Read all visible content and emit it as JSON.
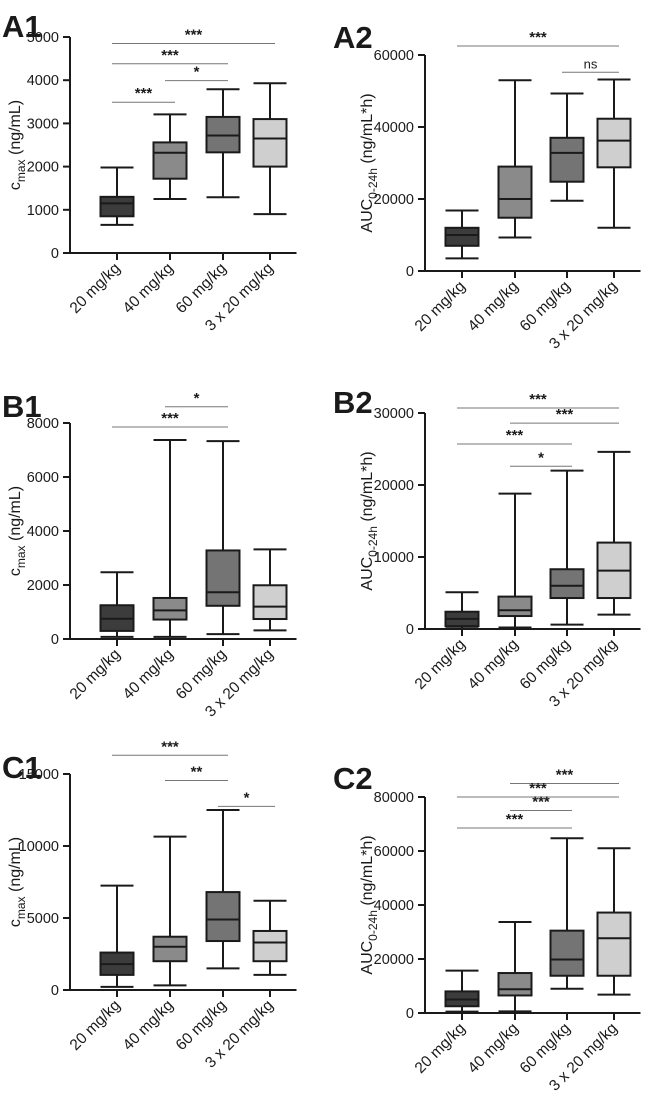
{
  "figure": {
    "colors": {
      "box_fills": [
        "#3c3c3c",
        "#8a8a8a",
        "#747474",
        "#cfcfcf"
      ],
      "line": "#1a1a1a",
      "significance_line": "#777777"
    }
  },
  "chart_data": [
    {
      "type": "box",
      "panel": "A1",
      "title": "",
      "ylabel_main": "c",
      "ylabel_sub": "max",
      "ylabel_unit": " (ng/mL)",
      "categories": [
        "20 mg/kg",
        "40 mg/kg",
        "60 mg/kg",
        "3 x 20 mg/kg"
      ],
      "ylim": [
        0,
        5000
      ],
      "yticks": [
        0,
        1000,
        2000,
        3000,
        4000,
        5000
      ],
      "ytick_labels": [
        "0",
        "1000",
        "2000",
        "3000",
        "4000",
        "5000"
      ],
      "boxes": [
        {
          "min": 650,
          "q1": 850,
          "median": 1150,
          "q3": 1300,
          "max": 1980
        },
        {
          "min": 1250,
          "q1": 1720,
          "median": 2320,
          "q3": 2560,
          "max": 3210
        },
        {
          "min": 1290,
          "q1": 2330,
          "median": 2720,
          "q3": 3150,
          "max": 3790
        },
        {
          "min": 900,
          "q1": 2000,
          "median": 2650,
          "q3": 3100,
          "max": 3930
        }
      ],
      "significance": [
        {
          "from": 0,
          "to": 3,
          "label": "***",
          "y": 4850
        },
        {
          "from": 0,
          "to": 2,
          "label": "***",
          "y": 4380
        },
        {
          "from": 1,
          "to": 2,
          "label": "*",
          "y": 3990
        },
        {
          "from": 0,
          "to": 1,
          "label": "***",
          "y": 3490
        }
      ]
    },
    {
      "type": "box",
      "panel": "A2",
      "title": "",
      "ylabel_main": "AUC",
      "ylabel_sub": "0-24h",
      "ylabel_unit": " (ng/mL*h)",
      "categories": [
        "20 mg/kg",
        "40 mg/kg",
        "60 mg/kg",
        "3 x 20 mg/kg"
      ],
      "ylim": [
        0,
        60000
      ],
      "yticks": [
        0,
        20000,
        40000,
        60000
      ],
      "ytick_labels": [
        "0",
        "20000",
        "40000",
        "60000"
      ],
      "boxes": [
        {
          "min": 3500,
          "q1": 7000,
          "median": 10000,
          "q3": 12000,
          "max": 16800
        },
        {
          "min": 9300,
          "q1": 14800,
          "median": 20000,
          "q3": 29000,
          "max": 53000
        },
        {
          "min": 19500,
          "q1": 24800,
          "median": 32800,
          "q3": 37000,
          "max": 49300
        },
        {
          "min": 12000,
          "q1": 28800,
          "median": 36200,
          "q3": 42300,
          "max": 53200
        }
      ],
      "significance": [
        {
          "from": 0,
          "to": 3,
          "label": "***",
          "y": 62500
        },
        {
          "from": 2,
          "to": 3,
          "label": "ns",
          "y": 55200
        }
      ]
    },
    {
      "type": "box",
      "panel": "B1",
      "title": "",
      "ylabel_main": "c",
      "ylabel_sub": "max",
      "ylabel_unit": " (ng/mL)",
      "categories": [
        "20 mg/kg",
        "40 mg/kg",
        "60 mg/kg",
        "3 x 20 mg/kg"
      ],
      "ylim": [
        0,
        8000
      ],
      "yticks": [
        0,
        2000,
        4000,
        6000,
        8000
      ],
      "ytick_labels": [
        "0",
        "2000",
        "4000",
        "6000",
        "8000"
      ],
      "boxes": [
        {
          "min": 80,
          "q1": 300,
          "median": 750,
          "q3": 1250,
          "max": 2470
        },
        {
          "min": 80,
          "q1": 720,
          "median": 1060,
          "q3": 1520,
          "max": 7370
        },
        {
          "min": 180,
          "q1": 1230,
          "median": 1730,
          "q3": 3280,
          "max": 7330
        },
        {
          "min": 320,
          "q1": 740,
          "median": 1200,
          "q3": 1990,
          "max": 3320
        }
      ],
      "significance": [
        {
          "from": 1,
          "to": 2,
          "label": "*",
          "y": 8600
        },
        {
          "from": 0,
          "to": 2,
          "label": "***",
          "y": 7850
        }
      ]
    },
    {
      "type": "box",
      "panel": "B2",
      "title": "",
      "ylabel_main": "AUC",
      "ylabel_sub": "0-24h",
      "ylabel_unit": " (ng/mL*h)",
      "categories": [
        "20 mg/kg",
        "40 mg/kg",
        "60 mg/kg",
        "3 x 20 mg/kg"
      ],
      "ylim": [
        0,
        30000
      ],
      "yticks": [
        0,
        10000,
        20000,
        30000
      ],
      "ytick_labels": [
        "0",
        "10000",
        "20000",
        "30000"
      ],
      "boxes": [
        {
          "min": 100,
          "q1": 400,
          "median": 1400,
          "q3": 2400,
          "max": 5100
        },
        {
          "min": 200,
          "q1": 1800,
          "median": 2600,
          "q3": 4500,
          "max": 18800
        },
        {
          "min": 600,
          "q1": 4300,
          "median": 6000,
          "q3": 8300,
          "max": 22000
        },
        {
          "min": 2000,
          "q1": 4300,
          "median": 8100,
          "q3": 12000,
          "max": 24600
        }
      ],
      "significance": [
        {
          "from": 0,
          "to": 3,
          "label": "***",
          "y": 30700
        },
        {
          "from": 1,
          "to": 3,
          "label": "***",
          "y": 28600
        },
        {
          "from": 0,
          "to": 2,
          "label": "***",
          "y": 25700
        },
        {
          "from": 1,
          "to": 2,
          "label": "*",
          "y": 22600
        }
      ]
    },
    {
      "type": "box",
      "panel": "C1",
      "title": "",
      "ylabel_main": "c",
      "ylabel_sub": "max",
      "ylabel_unit": " (ng/mL)",
      "categories": [
        "20 mg/kg",
        "40 mg/kg",
        "60 mg/kg",
        "3 x 20 mg/kg"
      ],
      "ylim": [
        0,
        15000
      ],
      "yticks": [
        0,
        5000,
        10000,
        15000
      ],
      "ytick_labels": [
        "0",
        "5000",
        "10000",
        "15000"
      ],
      "boxes": [
        {
          "min": 220,
          "q1": 1050,
          "median": 1800,
          "q3": 2600,
          "max": 7250
        },
        {
          "min": 320,
          "q1": 2000,
          "median": 3000,
          "q3": 3700,
          "max": 10650
        },
        {
          "min": 1500,
          "q1": 3400,
          "median": 4900,
          "q3": 6800,
          "max": 12500
        },
        {
          "min": 1050,
          "q1": 2000,
          "median": 3300,
          "q3": 4100,
          "max": 6200
        }
      ],
      "significance": [
        {
          "from": 0,
          "to": 2,
          "label": "***",
          "y": 16300
        },
        {
          "from": 1,
          "to": 2,
          "label": "**",
          "y": 14550
        },
        {
          "from": 2,
          "to": 3,
          "label": "*",
          "y": 12750
        }
      ]
    },
    {
      "type": "box",
      "panel": "C2",
      "title": "",
      "ylabel_main": "AUC",
      "ylabel_sub": "0-24h",
      "ylabel_unit": " (ng/mL*h)",
      "categories": [
        "20 mg/kg",
        "40 mg/kg",
        "60 mg/kg",
        "3 x 20 mg/kg"
      ],
      "ylim": [
        0,
        80000
      ],
      "yticks": [
        0,
        20000,
        40000,
        60000,
        80000
      ],
      "ytick_labels": [
        "0",
        "20000",
        "40000",
        "60000",
        "80000"
      ],
      "boxes": [
        {
          "min": 500,
          "q1": 2500,
          "median": 5000,
          "q3": 8000,
          "max": 15700
        },
        {
          "min": 600,
          "q1": 6500,
          "median": 8800,
          "q3": 14800,
          "max": 33700
        },
        {
          "min": 9000,
          "q1": 13800,
          "median": 19800,
          "q3": 30500,
          "max": 64700
        },
        {
          "min": 6800,
          "q1": 13800,
          "median": 27700,
          "q3": 37200,
          "max": 61000
        }
      ],
      "significance": [
        {
          "from": 1,
          "to": 3,
          "label": "***",
          "y": 85000
        },
        {
          "from": 0,
          "to": 3,
          "label": "***",
          "y": 80000
        },
        {
          "from": 1,
          "to": 2,
          "label": "***",
          "y": 75000
        },
        {
          "from": 0,
          "to": 2,
          "label": "***",
          "y": 68500
        }
      ]
    }
  ]
}
